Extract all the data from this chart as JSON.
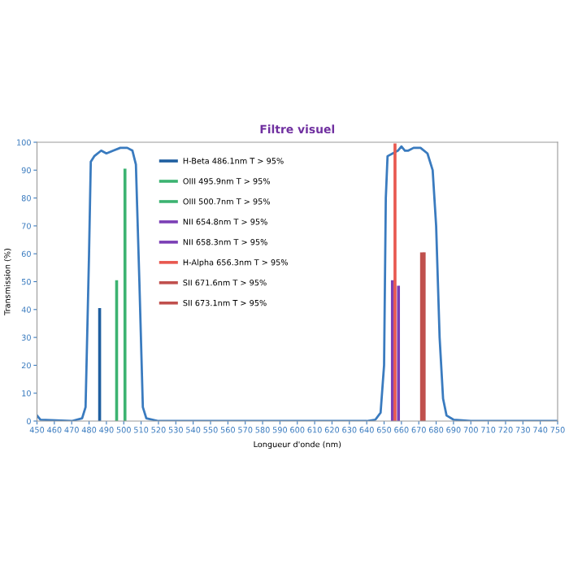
{
  "chart_data": {
    "type": "line",
    "title": "Filtre visuel",
    "xlabel": "Longueur d'onde (nm)",
    "ylabel": "Transmission (%)",
    "xlim": [
      450,
      750
    ],
    "xticks": [
      450,
      460,
      470,
      480,
      490,
      500,
      510,
      520,
      530,
      540,
      550,
      560,
      570,
      580,
      590,
      600,
      610,
      620,
      630,
      640,
      650,
      660,
      670,
      680,
      690,
      700,
      710,
      720,
      730,
      740,
      750
    ],
    "ylim": [
      0,
      100
    ],
    "yticks": [
      0,
      10,
      20,
      30,
      40,
      50,
      60,
      70,
      80,
      90,
      100
    ],
    "grid": false,
    "legend": "top",
    "marker": "none",
    "line_style": "solid",
    "series": [
      {
        "color": "#3a7bbf",
        "x": [
          450,
          452,
          470,
          476,
          478,
          480,
          481,
          483,
          487,
          490,
          494,
          498,
          502,
          505,
          507,
          509,
          511,
          513,
          520,
          640,
          645,
          648,
          650,
          651,
          652,
          655,
          658,
          660,
          662,
          664,
          667,
          671,
          675,
          678,
          680,
          682,
          684,
          686,
          690,
          700,
          750
        ],
        "values": [
          2,
          0.5,
          0,
          1,
          5,
          60,
          93,
          95,
          97,
          96,
          97,
          98,
          98,
          97,
          92,
          50,
          5,
          1,
          0,
          0,
          0.5,
          3,
          20,
          80,
          95,
          96,
          97,
          98.5,
          97,
          97,
          98,
          98,
          96,
          90,
          70,
          30,
          8,
          2,
          0.5,
          0,
          0
        ]
      },
      {
        "name": "H-Beta 486.1nm T > 95%",
        "color": "#1f5fa0",
        "x": [
          486.1,
          486.1
        ],
        "values": [
          0,
          40
        ]
      },
      {
        "name": "OIII 495.9nm T > 95%",
        "color": "#3cb371",
        "x": [
          495.9,
          495.9
        ],
        "values": [
          0,
          50
        ]
      },
      {
        "name": "OIII 500.7nm T > 95%",
        "color": "#3cb371",
        "x": [
          500.7,
          500.7
        ],
        "values": [
          0,
          90
        ]
      },
      {
        "name": "NII 654.8nm T > 95%",
        "color": "#7b3fb5",
        "x": [
          654.8,
          654.8
        ],
        "values": [
          0,
          50
        ]
      },
      {
        "name": "NII 658.3nm T > 95%",
        "color": "#7b3fb5",
        "x": [
          658.3,
          658.3
        ],
        "values": [
          0,
          48
        ]
      },
      {
        "name": "H-Alpha 656.3nm T > 95%",
        "color": "#e8584f",
        "x": [
          656.3,
          656.3
        ],
        "values": [
          0,
          99
        ]
      },
      {
        "name": "SII 671.6nm T > 95%",
        "color": "#c0504d",
        "x": [
          671.6,
          671.6
        ],
        "values": [
          0,
          60
        ]
      },
      {
        "name": "SII 673.1nm T > 95%",
        "color": "#c0504d",
        "x": [
          673.1,
          673.1
        ],
        "values": [
          0,
          60
        ]
      }
    ]
  }
}
